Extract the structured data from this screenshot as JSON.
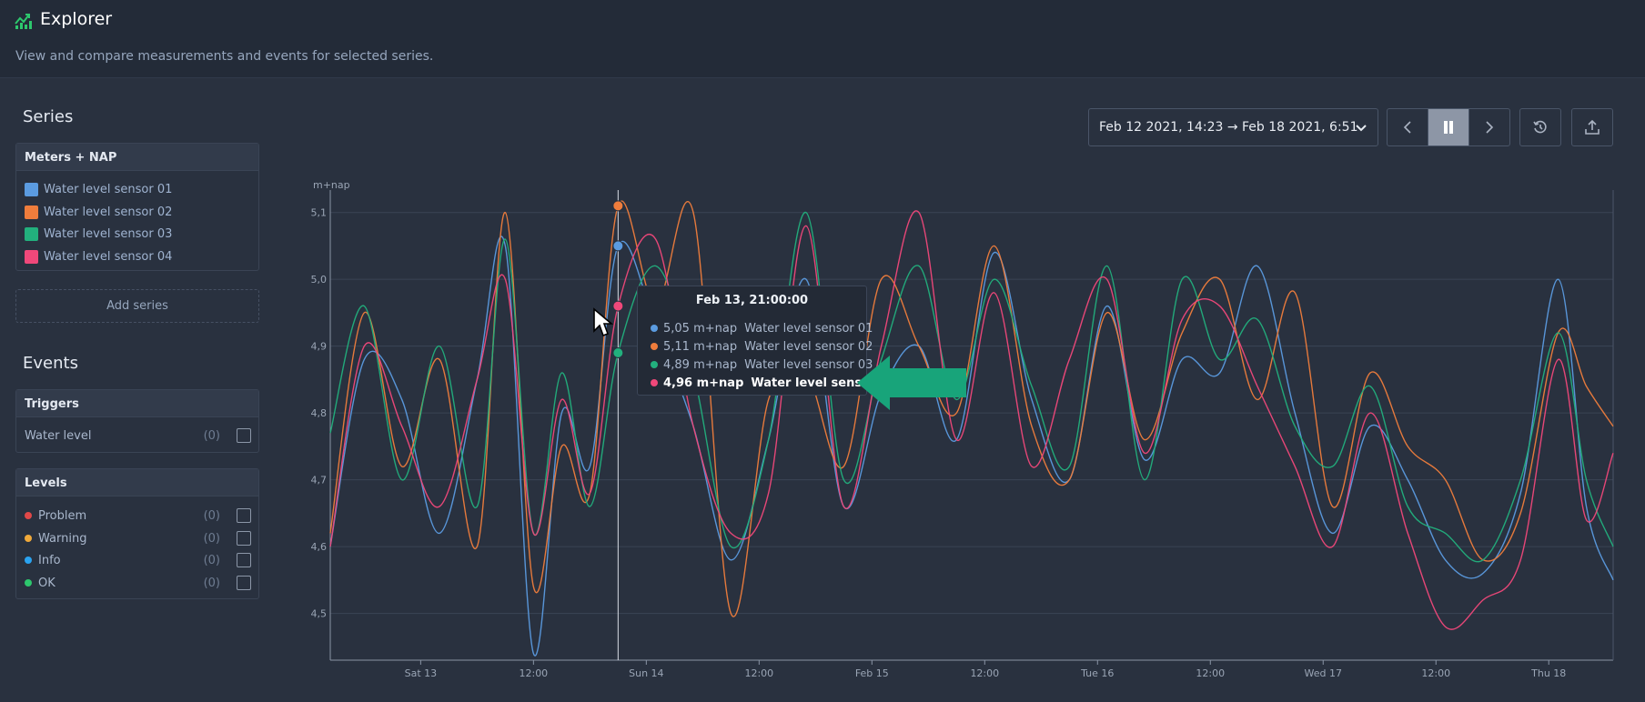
{
  "header": {
    "title": "Explorer",
    "subtitle": "View and compare measurements and events for selected series."
  },
  "series_section": {
    "heading": "Series",
    "group_title": "Meters + NAP",
    "items": [
      {
        "label": "Water level sensor 01",
        "color": "#5b9be0"
      },
      {
        "label": "Water level sensor 02",
        "color": "#ef7d3c"
      },
      {
        "label": "Water level sensor 03",
        "color": "#22b07d"
      },
      {
        "label": "Water level sensor 04",
        "color": "#f0487a"
      }
    ],
    "add_button": "Add series"
  },
  "events_section": {
    "heading": "Events",
    "triggers": {
      "title": "Triggers",
      "items": [
        {
          "label": "Water level",
          "count": "(0)"
        }
      ]
    },
    "levels": {
      "title": "Levels",
      "items": [
        {
          "label": "Problem",
          "count": "(0)",
          "color": "#e04848"
        },
        {
          "label": "Warning",
          "count": "(0)",
          "color": "#f0a93a"
        },
        {
          "label": "Info",
          "count": "(0)",
          "color": "#2aa3f0"
        },
        {
          "label": "OK",
          "count": "(0)",
          "color": "#2dc76d"
        }
      ]
    }
  },
  "toolbar": {
    "range": "Feb 12 2021, 14:23 → Feb 18 2021, 6:51",
    "icons": [
      "chevron-left-icon",
      "pause-icon",
      "chevron-right-icon",
      "history-icon",
      "export-icon"
    ]
  },
  "tooltip": {
    "title": "Feb 13, 21:00:00",
    "rows": [
      {
        "value": "5,05 m+nap",
        "label": "Water level sensor 01",
        "color": "#5b9be0"
      },
      {
        "value": "5,11 m+nap",
        "label": "Water level sensor 02",
        "color": "#ef7d3c"
      },
      {
        "value": "4,89 m+nap",
        "label": "Water level sensor 03",
        "color": "#22b07d"
      },
      {
        "value": "4,96 m+nap",
        "label": "Water level sensor 04",
        "color": "#f0487a",
        "highlighted": true
      }
    ]
  },
  "chart_data": {
    "type": "line",
    "ylabel": "m+nap",
    "ylim": [
      4.43,
      5.12
    ],
    "xlim": [
      "2021-02-12T14:23",
      "2021-02-18T06:51"
    ],
    "y_ticks": [
      "4,5",
      "4,6",
      "4,7",
      "4,8",
      "4,9",
      "5,0",
      "5,1"
    ],
    "y_tick_values": [
      4.5,
      4.6,
      4.7,
      4.8,
      4.9,
      5.0,
      5.1
    ],
    "x_ticks": [
      "Sat 13",
      "12:00",
      "Sun 14",
      "12:00",
      "Feb 15",
      "12:00",
      "Tue 16",
      "12:00",
      "Wed 17",
      "12:00",
      "Thu 18"
    ],
    "x_tick_times": [
      "2021-02-13T00:00",
      "2021-02-13T12:00",
      "2021-02-14T00:00",
      "2021-02-14T12:00",
      "2021-02-15T00:00",
      "2021-02-15T12:00",
      "2021-02-16T00:00",
      "2021-02-16T12:00",
      "2021-02-17T00:00",
      "2021-02-17T12:00",
      "2021-02-18T00:00"
    ],
    "hover_time": "2021-02-13T21:00",
    "grid": true,
    "series": [
      {
        "name": "Water level sensor 01",
        "color": "#5b9be0",
        "x": [
          "2021-02-12T14:23",
          "2021-02-12T18:00",
          "2021-02-12T22:00",
          "2021-02-13T02:00",
          "2021-02-13T06:00",
          "2021-02-13T09:00",
          "2021-02-13T12:00",
          "2021-02-13T15:00",
          "2021-02-13T18:00",
          "2021-02-13T21:00",
          "2021-02-14T01:00",
          "2021-02-14T05:00",
          "2021-02-14T09:00",
          "2021-02-14T13:00",
          "2021-02-14T17:00",
          "2021-02-14T21:00",
          "2021-02-15T01:00",
          "2021-02-15T05:00",
          "2021-02-15T09:00",
          "2021-02-15T13:00",
          "2021-02-15T17:00",
          "2021-02-15T21:00",
          "2021-02-16T01:00",
          "2021-02-16T05:00",
          "2021-02-16T09:00",
          "2021-02-16T13:00",
          "2021-02-16T17:00",
          "2021-02-16T21:00",
          "2021-02-17T01:00",
          "2021-02-17T05:00",
          "2021-02-17T09:00",
          "2021-02-17T13:00",
          "2021-02-17T17:00",
          "2021-02-17T21:00",
          "2021-02-18T01:00",
          "2021-02-18T04:00",
          "2021-02-18T06:51"
        ],
        "y": [
          4.6,
          4.88,
          4.82,
          4.62,
          4.85,
          5.05,
          4.44,
          4.8,
          4.72,
          5.05,
          4.93,
          4.78,
          4.58,
          4.76,
          5.0,
          4.66,
          4.83,
          4.9,
          4.76,
          5.04,
          4.82,
          4.7,
          4.96,
          4.73,
          4.88,
          4.86,
          5.02,
          4.8,
          4.62,
          4.78,
          4.7,
          4.58,
          4.56,
          4.68,
          5.0,
          4.66,
          4.55
        ]
      },
      {
        "name": "Water level sensor 02",
        "color": "#ef7d3c",
        "x": [
          "2021-02-12T14:23",
          "2021-02-12T18:00",
          "2021-02-12T22:00",
          "2021-02-13T02:00",
          "2021-02-13T06:00",
          "2021-02-13T09:00",
          "2021-02-13T12:00",
          "2021-02-13T15:00",
          "2021-02-13T18:00",
          "2021-02-13T21:00",
          "2021-02-14T01:00",
          "2021-02-14T05:00",
          "2021-02-14T09:00",
          "2021-02-14T13:00",
          "2021-02-14T17:00",
          "2021-02-14T21:00",
          "2021-02-15T01:00",
          "2021-02-15T05:00",
          "2021-02-15T09:00",
          "2021-02-15T13:00",
          "2021-02-15T17:00",
          "2021-02-15T21:00",
          "2021-02-16T01:00",
          "2021-02-16T05:00",
          "2021-02-16T09:00",
          "2021-02-16T13:00",
          "2021-02-16T17:00",
          "2021-02-16T21:00",
          "2021-02-17T01:00",
          "2021-02-17T05:00",
          "2021-02-17T09:00",
          "2021-02-17T13:00",
          "2021-02-17T17:00",
          "2021-02-17T21:00",
          "2021-02-18T01:00",
          "2021-02-18T04:00",
          "2021-02-18T06:51"
        ],
        "y": [
          4.62,
          4.95,
          4.72,
          4.88,
          4.6,
          5.1,
          4.54,
          4.75,
          4.68,
          5.11,
          4.96,
          5.1,
          4.5,
          4.82,
          4.86,
          4.72,
          5.0,
          4.9,
          4.8,
          5.05,
          4.78,
          4.7,
          4.95,
          4.76,
          4.92,
          5.0,
          4.82,
          4.98,
          4.66,
          4.86,
          4.75,
          4.7,
          4.58,
          4.65,
          4.92,
          4.84,
          4.78
        ]
      },
      {
        "name": "Water level sensor 03",
        "color": "#22b07d",
        "x": [
          "2021-02-12T14:23",
          "2021-02-12T18:00",
          "2021-02-12T22:00",
          "2021-02-13T02:00",
          "2021-02-13T06:00",
          "2021-02-13T09:00",
          "2021-02-13T12:00",
          "2021-02-13T15:00",
          "2021-02-13T18:00",
          "2021-02-13T21:00",
          "2021-02-14T01:00",
          "2021-02-14T05:00",
          "2021-02-14T09:00",
          "2021-02-14T13:00",
          "2021-02-14T17:00",
          "2021-02-14T21:00",
          "2021-02-15T01:00",
          "2021-02-15T05:00",
          "2021-02-15T09:00",
          "2021-02-15T13:00",
          "2021-02-15T17:00",
          "2021-02-15T21:00",
          "2021-02-16T01:00",
          "2021-02-16T05:00",
          "2021-02-16T09:00",
          "2021-02-16T13:00",
          "2021-02-16T17:00",
          "2021-02-16T21:00",
          "2021-02-17T01:00",
          "2021-02-17T05:00",
          "2021-02-17T09:00",
          "2021-02-17T13:00",
          "2021-02-17T17:00",
          "2021-02-17T21:00",
          "2021-02-18T01:00",
          "2021-02-18T04:00",
          "2021-02-18T06:51"
        ],
        "y": [
          4.77,
          4.96,
          4.7,
          4.9,
          4.66,
          5.06,
          4.62,
          4.86,
          4.66,
          4.89,
          5.02,
          4.86,
          4.6,
          4.76,
          5.1,
          4.7,
          4.88,
          5.02,
          4.82,
          5.0,
          4.84,
          4.72,
          5.02,
          4.7,
          5.0,
          4.88,
          4.94,
          4.78,
          4.72,
          4.84,
          4.66,
          4.62,
          4.58,
          4.7,
          4.92,
          4.7,
          4.6
        ]
      },
      {
        "name": "Water level sensor 04",
        "color": "#f0487a",
        "x": [
          "2021-02-12T14:23",
          "2021-02-12T18:00",
          "2021-02-12T22:00",
          "2021-02-13T02:00",
          "2021-02-13T06:00",
          "2021-02-13T09:00",
          "2021-02-13T12:00",
          "2021-02-13T15:00",
          "2021-02-13T18:00",
          "2021-02-13T21:00",
          "2021-02-14T01:00",
          "2021-02-14T05:00",
          "2021-02-14T09:00",
          "2021-02-14T13:00",
          "2021-02-14T17:00",
          "2021-02-14T21:00",
          "2021-02-15T01:00",
          "2021-02-15T05:00",
          "2021-02-15T09:00",
          "2021-02-15T13:00",
          "2021-02-15T17:00",
          "2021-02-15T21:00",
          "2021-02-16T01:00",
          "2021-02-16T05:00",
          "2021-02-16T09:00",
          "2021-02-16T13:00",
          "2021-02-16T17:00",
          "2021-02-16T21:00",
          "2021-02-17T01:00",
          "2021-02-17T05:00",
          "2021-02-17T09:00",
          "2021-02-17T13:00",
          "2021-02-17T17:00",
          "2021-02-17T21:00",
          "2021-02-18T01:00",
          "2021-02-18T04:00",
          "2021-02-18T06:51"
        ],
        "y": [
          4.6,
          4.9,
          4.78,
          4.66,
          4.85,
          5.0,
          4.62,
          4.82,
          4.68,
          4.96,
          5.06,
          4.78,
          4.62,
          4.68,
          5.08,
          4.66,
          4.9,
          5.1,
          4.76,
          4.98,
          4.72,
          4.88,
          5.0,
          4.74,
          4.94,
          4.96,
          4.84,
          4.72,
          4.6,
          4.8,
          4.62,
          4.48,
          4.52,
          4.58,
          4.88,
          4.64,
          4.74
        ]
      }
    ]
  }
}
